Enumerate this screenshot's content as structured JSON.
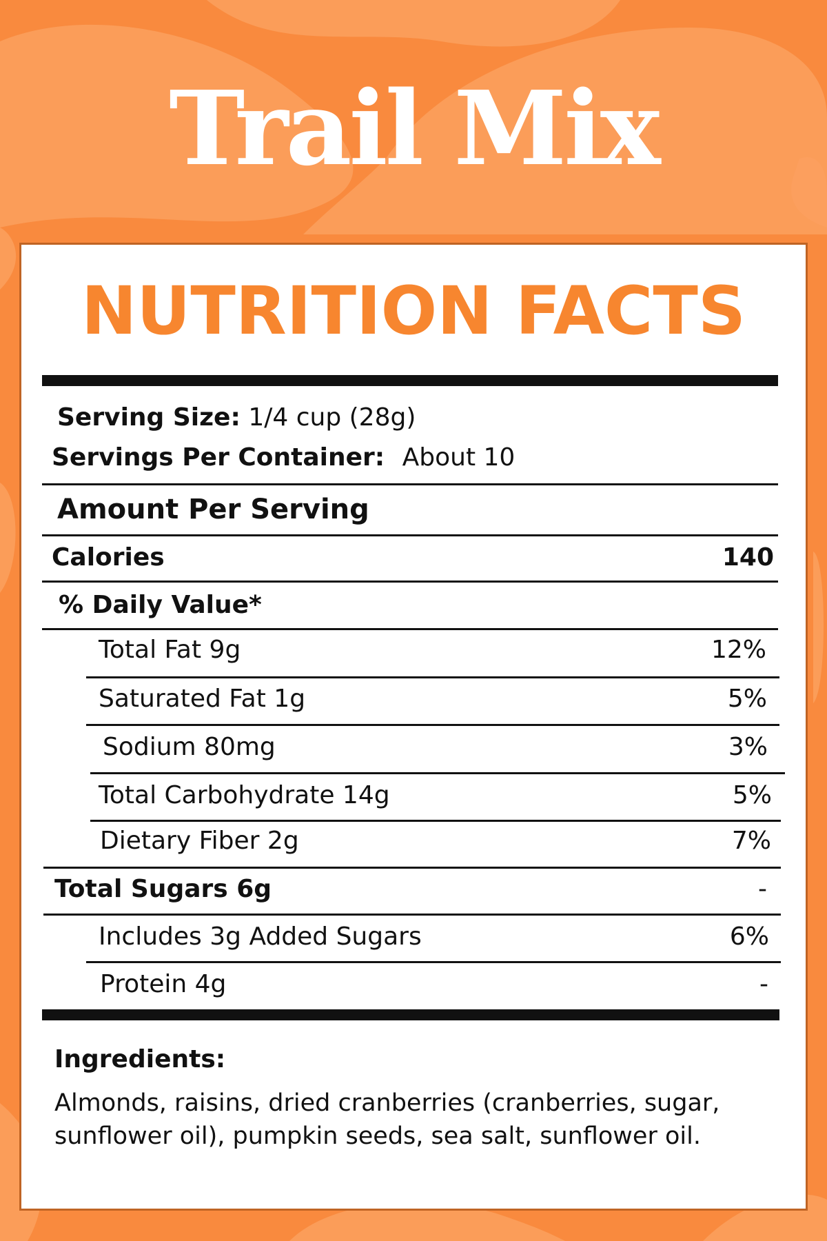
{
  "product": {
    "title": "Trail Mix"
  },
  "panel": {
    "heading": "NUTRITION FACTS"
  },
  "serving": {
    "size_label": "Serving Size:",
    "size_value": "1/4 cup (28g)",
    "per_container_label": "Servings Per Container:",
    "per_container_value": "About 10"
  },
  "amount_per_serving": "Amount Per Serving",
  "calories": {
    "label": "Calories",
    "value": "140"
  },
  "daily_value_header": "% Daily Value*",
  "nutrients": [
    {
      "label": "Total Fat 9g",
      "dv": "12%"
    },
    {
      "label": "Saturated Fat 1g",
      "dv": "5%"
    },
    {
      "label": "Sodium 80mg",
      "dv": "3%"
    },
    {
      "label": "Total Carbohydrate 14g",
      "dv": "5%"
    },
    {
      "label": "Dietary Fiber 2g",
      "dv": "7%"
    },
    {
      "label": "Total Sugars 6g",
      "dv": "-"
    },
    {
      "label": "Includes 3g Added Sugars",
      "dv": "6%"
    },
    {
      "label": "Protein 4g",
      "dv": "-"
    }
  ],
  "ingredients": {
    "label": "Ingredients:",
    "text": "Almonds, raisins, dried cranberries (cranberries, sugar, sunflower oil), pumpkin seeds, sea salt, sunflower oil."
  },
  "colors": {
    "background": "#f98a3e",
    "background_shapes": "#fb9d59",
    "heading": "#f7862f",
    "panel": "#ffffff",
    "panel_border": "#c06424",
    "text": "#111111"
  }
}
